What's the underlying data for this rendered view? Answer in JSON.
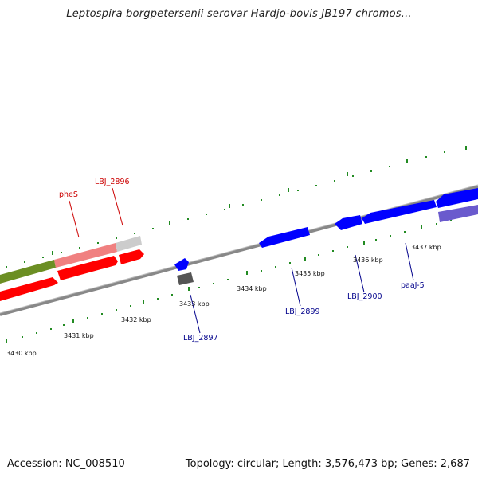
{
  "title": "Leptospira borgpetersenii serovar Hardjo-bovis JB197 chromos...",
  "footer": {
    "accession": "Accession: NC_008510",
    "summary": "Topology: circular; Length: 3,576,473 bp; Genes: 2,687"
  },
  "ruler_labels": [
    "3430 kbp",
    "3431 kbp",
    "3432 kbp",
    "3433 kbp",
    "3434 kbp",
    "3435 kbp",
    "3436 kbp",
    "3437 kbp"
  ],
  "gene_labels": {
    "phes": "pheS",
    "lbj2896": "LBJ_2896",
    "lbj2897": "LBJ_2897",
    "lbj2899": "LBJ_2899",
    "lbj2900": "LBJ_2900",
    "paaj5": "paaJ-5"
  },
  "colors": {
    "red_gene": "#ff0000",
    "pink_gene": "#f08080",
    "olive_gene": "#6b8e23",
    "blue_gene": "#0000ff",
    "slate_gene": "#6a5acd",
    "gray_gene": "#555555",
    "backbone": "#888888",
    "tick": "#228b22",
    "red_label": "#cc0000",
    "blue_label": "#00008b"
  }
}
